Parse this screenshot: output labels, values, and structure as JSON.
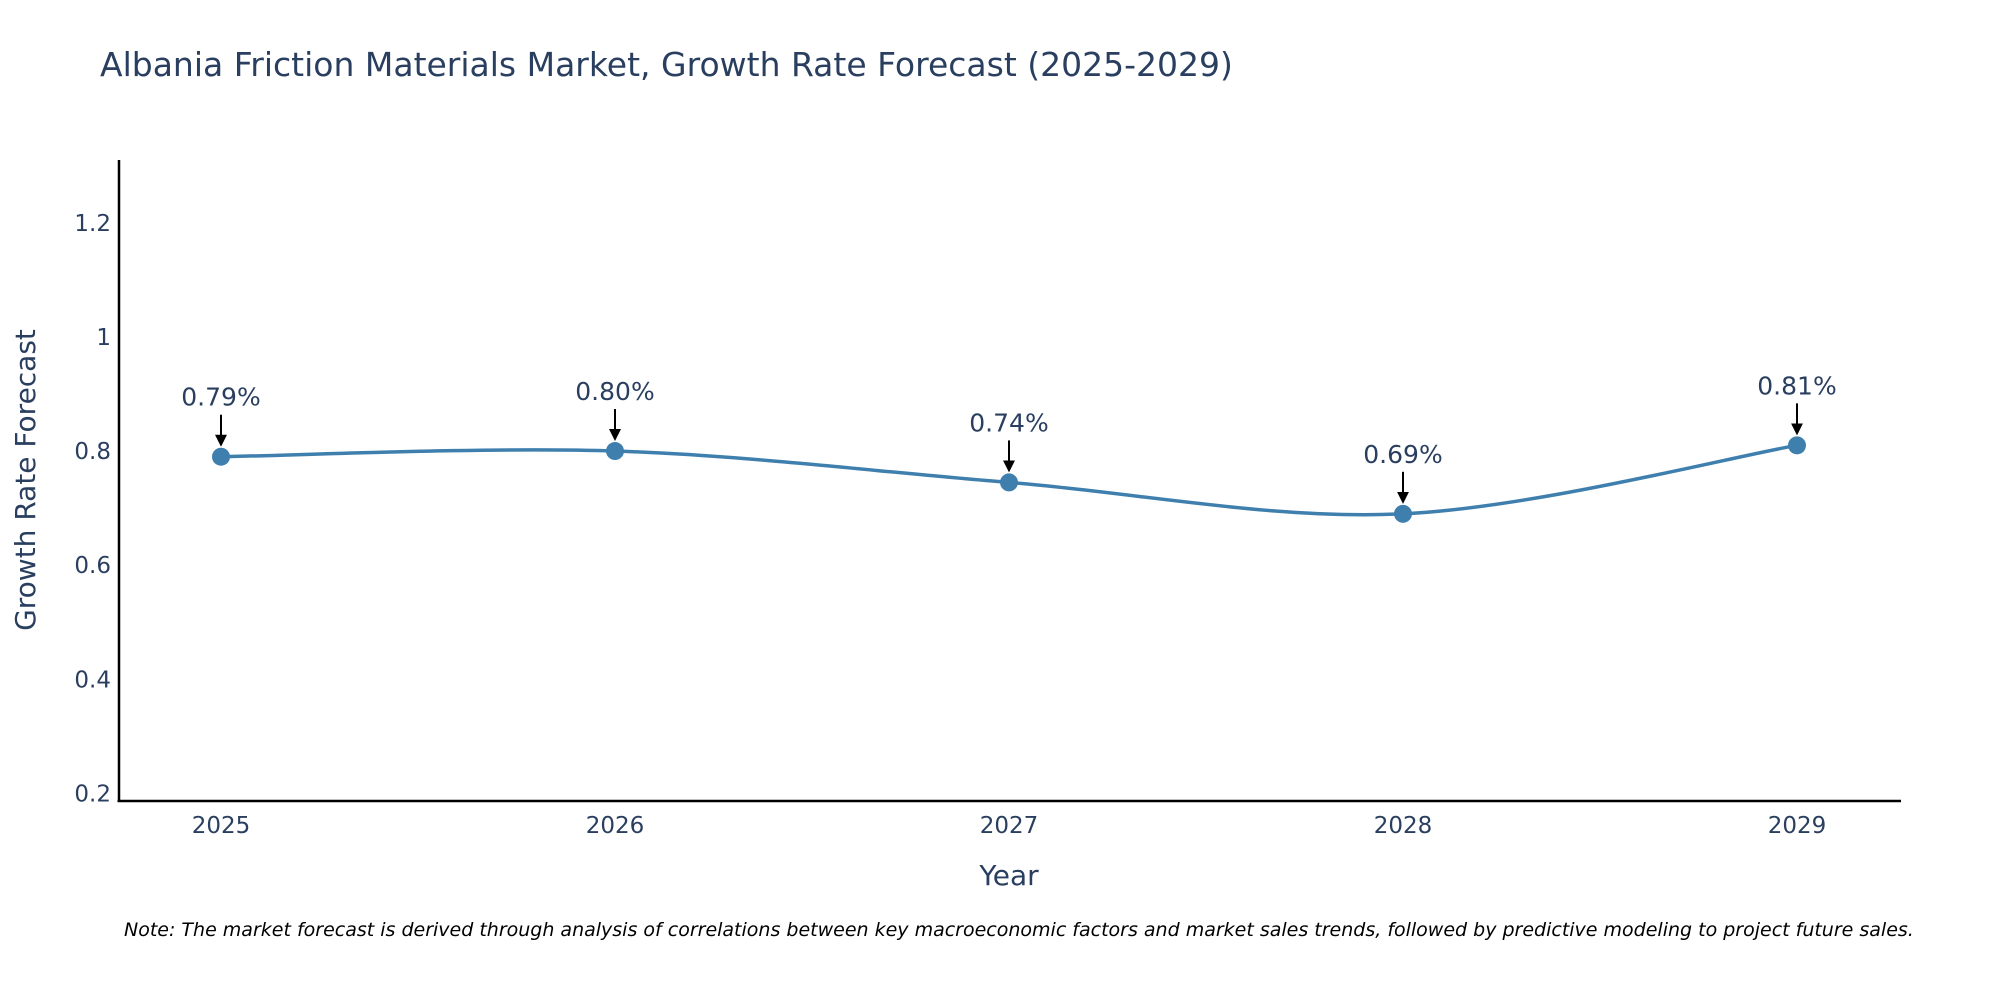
{
  "chart_data": {
    "type": "line",
    "title": "Albania Friction Materials Market, Growth Rate Forecast (2025-2029)",
    "xlabel": "Year",
    "ylabel": "Growth Rate Forecast",
    "categories": [
      "2025",
      "2026",
      "2027",
      "2028",
      "2029"
    ],
    "series": [
      {
        "name": "Growth Rate Forecast",
        "values": [
          0.79,
          0.8,
          0.745,
          0.69,
          0.81
        ],
        "labels": [
          "0.79%",
          "0.80%",
          "0.74%",
          "0.69%",
          "0.81%"
        ],
        "color": "#3f7fae"
      }
    ],
    "y_ticks": [
      0.2,
      0.4,
      0.6,
      0.8,
      1.0,
      1.2
    ],
    "y_tick_labels": [
      "0.2",
      "0.4",
      "0.6",
      "0.8",
      "1",
      "1.2"
    ],
    "ylim": [
      0.185,
      1.31
    ],
    "grid": false,
    "line_shape": "spline"
  },
  "note": "Note: The market forecast is derived through analysis of correlations between key macroeconomic factors and market sales trends, followed by predictive modeling to project future sales."
}
